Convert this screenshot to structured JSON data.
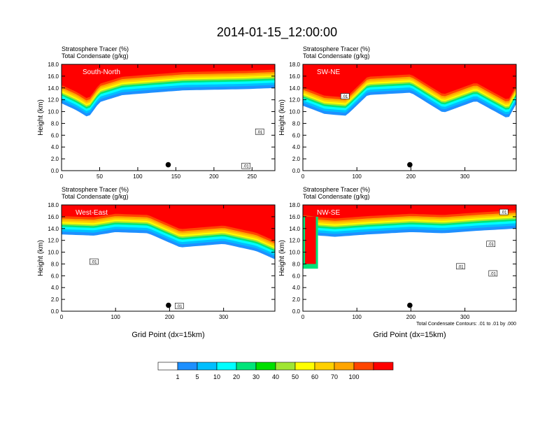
{
  "title": "2014-01-15_12:00:00",
  "chart_data": [
    {
      "type": "heatmap",
      "field_label": "Stratosphere Tracer",
      "field_units": "(%)",
      "contour_label": "Total Condensate",
      "contour_units": "(g/kg)",
      "panel_label": "South-North",
      "xlabel": "",
      "ylabel": "Height (km)",
      "xlim": [
        0,
        280
      ],
      "ylim": [
        0,
        18
      ],
      "xticks": [
        "0",
        "50",
        "100",
        "150",
        "200",
        "250"
      ],
      "xtick_values": [
        0,
        50,
        100,
        150,
        200,
        250
      ],
      "yticks": [
        "0.0",
        "2.0",
        "4.0",
        "6.0",
        "8.0",
        "10.0",
        "12.0",
        "14.0",
        "16.0",
        "18.0"
      ],
      "tropopause_profile": [
        [
          0,
          13.6
        ],
        [
          20,
          12.4
        ],
        [
          35,
          11.2
        ],
        [
          50,
          13.8
        ],
        [
          80,
          15.0
        ],
        [
          120,
          15.4
        ],
        [
          160,
          15.8
        ],
        [
          200,
          15.9
        ],
        [
          240,
          16.0
        ],
        [
          280,
          16.2
        ]
      ],
      "marker": {
        "x": 140,
        "y": 1.0
      },
      "contour_value_labels": [
        {
          "x": 242,
          "y": 0.8,
          "text": ".01"
        },
        {
          "x": 260,
          "y": 6.6,
          "text": ".01"
        }
      ]
    },
    {
      "type": "heatmap",
      "field_label": "Stratosphere Tracer",
      "field_units": "(%)",
      "contour_label": "Total Condensate",
      "contour_units": "(g/kg)",
      "panel_label": "SW-NE",
      "xlabel": "",
      "ylabel": "Height (km)",
      "xlim": [
        0,
        395
      ],
      "ylim": [
        0,
        18
      ],
      "xticks": [
        "0",
        "100",
        "200",
        "300"
      ],
      "xtick_values": [
        0,
        100,
        200,
        300
      ],
      "yticks": [
        "0.0",
        "2.0",
        "4.0",
        "6.0",
        "8.0",
        "10.0",
        "12.0",
        "14.0",
        "16.0",
        "18.0"
      ],
      "tropopause_profile": [
        [
          0,
          13.2
        ],
        [
          40,
          11.8
        ],
        [
          80,
          11.5
        ],
        [
          120,
          15.0
        ],
        [
          200,
          15.4
        ],
        [
          260,
          12.0
        ],
        [
          320,
          14.0
        ],
        [
          380,
          11.0
        ],
        [
          395,
          13.5
        ]
      ],
      "marker": {
        "x": 198,
        "y": 1.0
      },
      "contour_value_labels": [
        {
          "x": 78,
          "y": 12.6,
          "text": ".01"
        }
      ]
    },
    {
      "type": "heatmap",
      "field_label": "Stratosphere Tracer",
      "field_units": "(%)",
      "contour_label": "Total Condensate",
      "contour_units": "(g/kg)",
      "panel_label": "West-East",
      "xlabel": "Grid Point (dx=15km)",
      "ylabel": "Height (km)",
      "xlim": [
        0,
        395
      ],
      "ylim": [
        0,
        18
      ],
      "xticks": [
        "0",
        "100",
        "200",
        "300"
      ],
      "xtick_values": [
        0,
        100,
        200,
        300
      ],
      "yticks": [
        "0.0",
        "2.0",
        "4.0",
        "6.0",
        "8.0",
        "10.0",
        "12.0",
        "14.0",
        "16.0",
        "18.0"
      ],
      "tropopause_profile": [
        [
          0,
          15.2
        ],
        [
          60,
          15.0
        ],
        [
          100,
          15.6
        ],
        [
          160,
          15.4
        ],
        [
          220,
          13.0
        ],
        [
          300,
          13.6
        ],
        [
          360,
          12.4
        ],
        [
          395,
          11.0
        ]
      ],
      "marker": {
        "x": 198,
        "y": 1.0
      },
      "contour_value_labels": [
        {
          "x": 60,
          "y": 8.4,
          "text": ".01"
        },
        {
          "x": 218,
          "y": 0.9,
          "text": ".01"
        }
      ]
    },
    {
      "type": "heatmap",
      "field_label": "Stratosphere Tracer",
      "field_units": "(%)",
      "contour_label": "Total Condensate",
      "contour_units": "(g/kg)",
      "panel_label": "NW-SE",
      "xlabel": "Grid Point (dx=15km)",
      "ylabel": "Height (km)",
      "xlim": [
        0,
        395
      ],
      "ylim": [
        0,
        18
      ],
      "xticks": [
        "0",
        "100",
        "200",
        "300"
      ],
      "xtick_values": [
        0,
        100,
        200,
        300
      ],
      "yticks": [
        "0.0",
        "2.0",
        "4.0",
        "6.0",
        "8.0",
        "10.0",
        "12.0",
        "14.0",
        "16.0",
        "18.0"
      ],
      "tropopause_profile": [
        [
          0,
          15.4
        ],
        [
          30,
          15.0
        ],
        [
          60,
          14.8
        ],
        [
          120,
          15.2
        ],
        [
          200,
          15.6
        ],
        [
          260,
          15.4
        ],
        [
          320,
          15.8
        ],
        [
          395,
          16.2
        ]
      ],
      "intrusion": {
        "x_start": 0,
        "x_end": 28,
        "y_bottom": 7.2
      },
      "marker": {
        "x": 198,
        "y": 1.0
      },
      "contour_value_labels": [
        {
          "x": 348,
          "y": 11.4,
          "text": ".01"
        },
        {
          "x": 292,
          "y": 7.6,
          "text": ".01"
        },
        {
          "x": 352,
          "y": 6.4,
          "text": ".01"
        },
        {
          "x": 372,
          "y": 16.8,
          "text": ".01"
        }
      ],
      "footnote": "Total Condensate Contours: .01 to .01 by .000"
    }
  ],
  "colorbar": {
    "labels": [
      "1",
      "5",
      "10",
      "20",
      "30",
      "40",
      "50",
      "60",
      "70",
      "100"
    ],
    "colors": [
      "#ffffff",
      "#1e90ff",
      "#00bfff",
      "#00ffff",
      "#00e57a",
      "#00e000",
      "#a0e632",
      "#ffff00",
      "#ffd000",
      "#ffa500",
      "#ff4500",
      "#ff0000"
    ]
  }
}
